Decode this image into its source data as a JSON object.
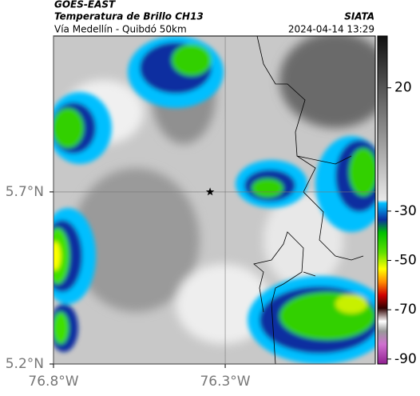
{
  "header": {
    "source": "GOES-EAST",
    "product": "Temperatura de Brillo CH13",
    "route": "Vía Medellín - Quibdó 50km",
    "provider": "SIATA",
    "timestamp": "2024-04-14 13:29"
  },
  "map": {
    "lonlim": [
      -76.8,
      -75.863
    ],
    "latlim": [
      5.2,
      6.153
    ],
    "lonticks": [
      {
        "value": -76.8,
        "label": "76.8°W"
      },
      {
        "value": -76.3,
        "label": "76.3°W"
      }
    ],
    "latticks": [
      {
        "value": 5.2,
        "label": "5.2°N"
      },
      {
        "value": 5.7,
        "label": "5.7°N"
      }
    ],
    "grid": true,
    "marker": {
      "lon": -76.344,
      "lat": 5.7
    }
  },
  "colorbar": {
    "lim": [
      -92,
      41
    ],
    "ticks": [
      20,
      -30,
      -50,
      -70,
      -90
    ]
  }
}
